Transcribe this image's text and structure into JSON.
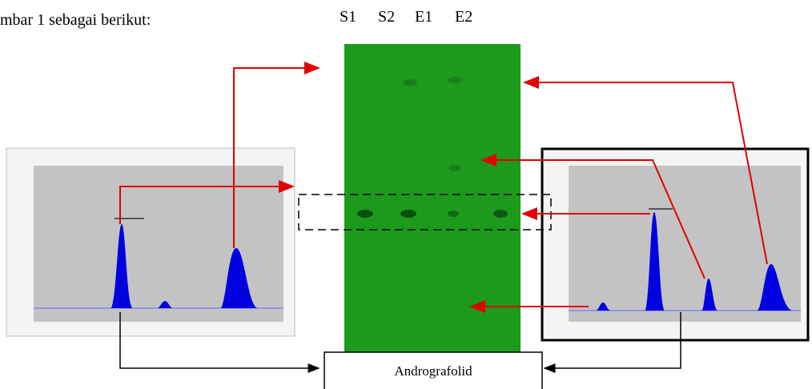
{
  "intro_text": "mbar 1 sebagai berikut:",
  "lanes": [
    "S1",
    "S2",
    "E1",
    "E2"
  ],
  "box_label": "Andrografolid"
}
